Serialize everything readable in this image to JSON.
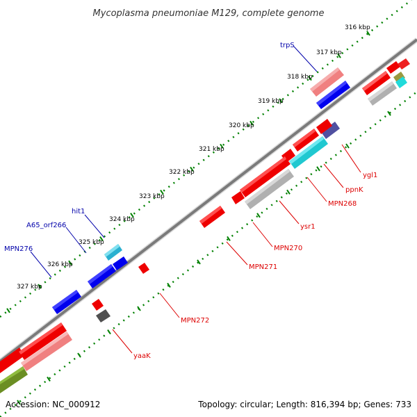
{
  "title": "Mycoplasma pneumoniae M129, complete genome",
  "footer": {
    "accession": "Accession: NC_000912",
    "summary": "Topology: circular; Length: 816,394 bp; Genes: 733"
  },
  "colors": {
    "forward_label": "#0000aa",
    "reverse_label": "#dd0000",
    "tick": "#008000",
    "backbone": "#808080"
  },
  "ticks": [
    {
      "label": "316 kbp"
    },
    {
      "label": "317 kbp"
    },
    {
      "label": "318 kbp"
    },
    {
      "label": "319 kbp"
    },
    {
      "label": "320 kbp"
    },
    {
      "label": "321 kbp"
    },
    {
      "label": "322 kbp"
    },
    {
      "label": "323 kbp"
    },
    {
      "label": "324 kbp"
    },
    {
      "label": "325 kbp"
    },
    {
      "label": "326 kbp"
    },
    {
      "label": "327 kbp"
    }
  ],
  "forward_labels": [
    {
      "text": "trpS"
    },
    {
      "text": "hit1"
    },
    {
      "text": "A65_orf266"
    },
    {
      "text": "MPN276"
    }
  ],
  "reverse_labels": [
    {
      "text": "ygl1"
    },
    {
      "text": "ppnK"
    },
    {
      "text": "MPN268"
    },
    {
      "text": "ysr1"
    },
    {
      "text": "MPN270"
    },
    {
      "text": "MPN271"
    },
    {
      "text": "MPN272"
    },
    {
      "text": "yaaK"
    }
  ]
}
